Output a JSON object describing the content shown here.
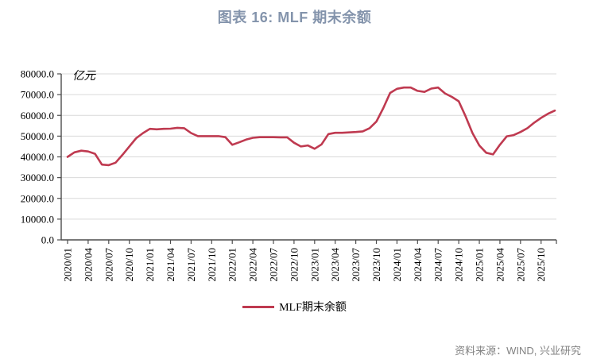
{
  "title": "图表 16: MLF 期末余额",
  "legend": {
    "label": "MLF期末余额"
  },
  "footer": {
    "source_text": "资料来源：WIND, 兴业研究"
  },
  "colors": {
    "line": "#bf3a50",
    "title": "#8494ac",
    "grid": "#d9d9d9",
    "axis": "#4d4d4d",
    "tick_text": "#000000",
    "footer_text": "#828282"
  },
  "chart_data": {
    "type": "line",
    "title": "图表 16: MLF 期末余额",
    "unit_label": "亿元",
    "ylabel": "亿元",
    "xlabel": "",
    "ylim": [
      0,
      80000
    ],
    "y_tick_step": 10000,
    "y_tick_labels": [
      "0.0",
      "10000.0",
      "20000.0",
      "30000.0",
      "40000.0",
      "50000.0",
      "60000.0",
      "70000.0",
      "80000.0"
    ],
    "x_tick_labels": [
      "2020/01",
      "2020/04",
      "2020/07",
      "2020/10",
      "2021/01",
      "2021/04",
      "2021/07",
      "2021/10",
      "2022/01",
      "2022/04",
      "2022/07",
      "2022/10",
      "2023/01",
      "2023/04",
      "2023/07",
      "2023/10",
      "2024/01",
      "2024/04",
      "2024/07",
      "2024/10",
      "2025/01",
      "2025/04",
      "2025/07",
      "2025/10"
    ],
    "x_monthly_start": "2020/01",
    "x_monthly_end": "2025/12",
    "grid": "horizontal",
    "legend_position": "bottom",
    "series": [
      {
        "name": "MLF期末余额",
        "values": [
          40000,
          42200,
          43000,
          42600,
          41500,
          36300,
          36000,
          37200,
          41000,
          45000,
          49000,
          51500,
          53500,
          53300,
          53500,
          53600,
          54000,
          53800,
          51500,
          50000,
          50000,
          50000,
          50000,
          49500,
          45800,
          47000,
          48300,
          49200,
          49500,
          49500,
          49500,
          49400,
          49400,
          46800,
          45000,
          45500,
          43900,
          46000,
          51000,
          51600,
          51600,
          51800,
          52000,
          52300,
          53800,
          57000,
          63500,
          70800,
          72800,
          73400,
          73400,
          71800,
          71300,
          72900,
          73400,
          70600,
          68900,
          66800,
          59500,
          51500,
          45500,
          42000,
          41200,
          45800,
          49900,
          50500,
          52000,
          53800,
          56500,
          58800,
          60800,
          62300
        ]
      }
    ]
  }
}
